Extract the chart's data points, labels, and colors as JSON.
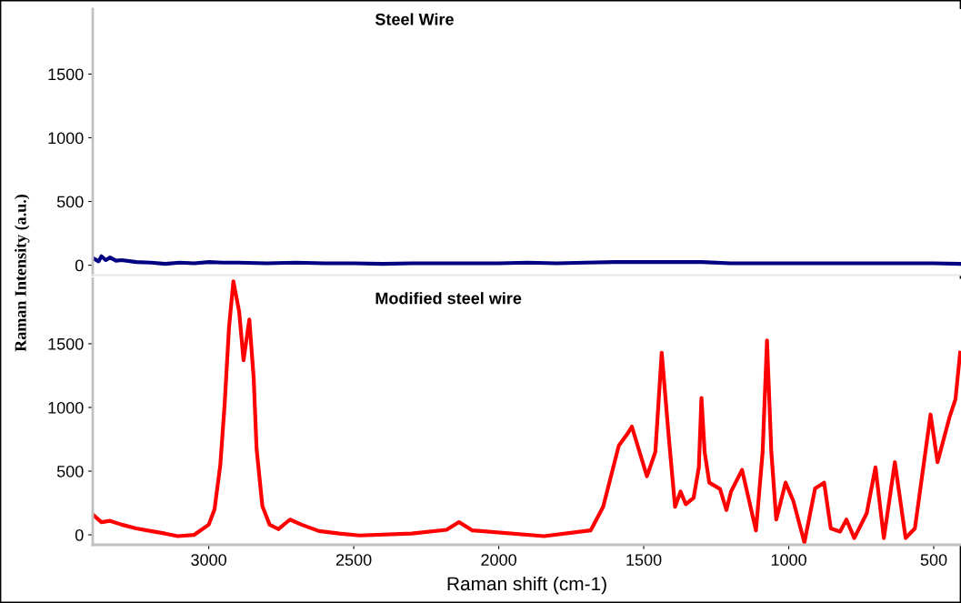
{
  "chart_data": [
    {
      "type": "line",
      "title": "Steel Wire",
      "ylabel": "Raman Intensity (a.u.)",
      "xlim": [
        3400,
        406
      ],
      "ylim": [
        -78,
        2010
      ],
      "yticks": [
        0,
        500,
        1000,
        1500
      ],
      "tick_labels": "y",
      "grid": false,
      "legend": false,
      "series": [
        {
          "color": "#000080",
          "x": [
            3395,
            3380,
            3370,
            3355,
            3340,
            3320,
            3300,
            3250,
            3200,
            3150,
            3100,
            3050,
            3000,
            2950,
            2900,
            2800,
            2700,
            2600,
            2500,
            2400,
            2300,
            2200,
            2100,
            2000,
            1900,
            1800,
            1700,
            1600,
            1500,
            1400,
            1300,
            1200,
            1100,
            1000,
            900,
            800,
            700,
            600,
            500,
            406
          ],
          "values": [
            50,
            30,
            70,
            40,
            60,
            35,
            40,
            25,
            20,
            10,
            20,
            15,
            25,
            20,
            20,
            15,
            20,
            15,
            15,
            10,
            15,
            15,
            15,
            15,
            20,
            15,
            20,
            25,
            25,
            25,
            25,
            15,
            15,
            15,
            15,
            15,
            15,
            15,
            15,
            10
          ]
        }
      ]
    },
    {
      "type": "line",
      "title": "Modified steel wire",
      "xlabel": "Raman shift (cm-1)",
      "xlim": [
        3400,
        406
      ],
      "ylim": [
        -78,
        2010
      ],
      "xticks": [
        3000,
        2500,
        2000,
        1500,
        1000,
        500
      ],
      "yticks": [
        0,
        500,
        1000,
        1500
      ],
      "grid": false,
      "legend": false,
      "series": [
        {
          "color": "#ff0000",
          "x": [
            3395,
            3370,
            3340,
            3300,
            3250,
            3200,
            3150,
            3107,
            3050,
            3000,
            2980,
            2960,
            2945,
            2930,
            2915,
            2895,
            2880,
            2860,
            2845,
            2835,
            2815,
            2790,
            2760,
            2720,
            2680,
            2620,
            2550,
            2480,
            2300,
            2180,
            2137,
            2091,
            1844,
            1683,
            1640,
            1586,
            1554,
            1541,
            1489,
            1460,
            1438,
            1414,
            1392,
            1373,
            1355,
            1328,
            1310,
            1301,
            1290,
            1274,
            1237,
            1215,
            1199,
            1161,
            1113,
            1090,
            1075,
            1060,
            1043,
            1011,
            984,
            946,
            909,
            878,
            855,
            823,
            801,
            774,
            731,
            701,
            672,
            634,
            597,
            565,
            511,
            487,
            446,
            425,
            409
          ],
          "values": [
            150,
            100,
            110,
            80,
            50,
            30,
            10,
            -10,
            0,
            80,
            200,
            550,
            1030,
            1630,
            1990,
            1750,
            1370,
            1690,
            1230,
            675,
            225,
            80,
            45,
            120,
            80,
            30,
            10,
            -5,
            10,
            40,
            100,
            35,
            -10,
            35,
            220,
            700,
            800,
            850,
            460,
            650,
            1430,
            775,
            220,
            340,
            240,
            290,
            530,
            1075,
            650,
            410,
            360,
            195,
            340,
            510,
            35,
            650,
            1525,
            650,
            120,
            410,
            265,
            -60,
            365,
            410,
            50,
            25,
            120,
            -25,
            170,
            530,
            -25,
            570,
            -25,
            50,
            945,
            570,
            920,
            1065,
            1430
          ]
        }
      ]
    }
  ]
}
